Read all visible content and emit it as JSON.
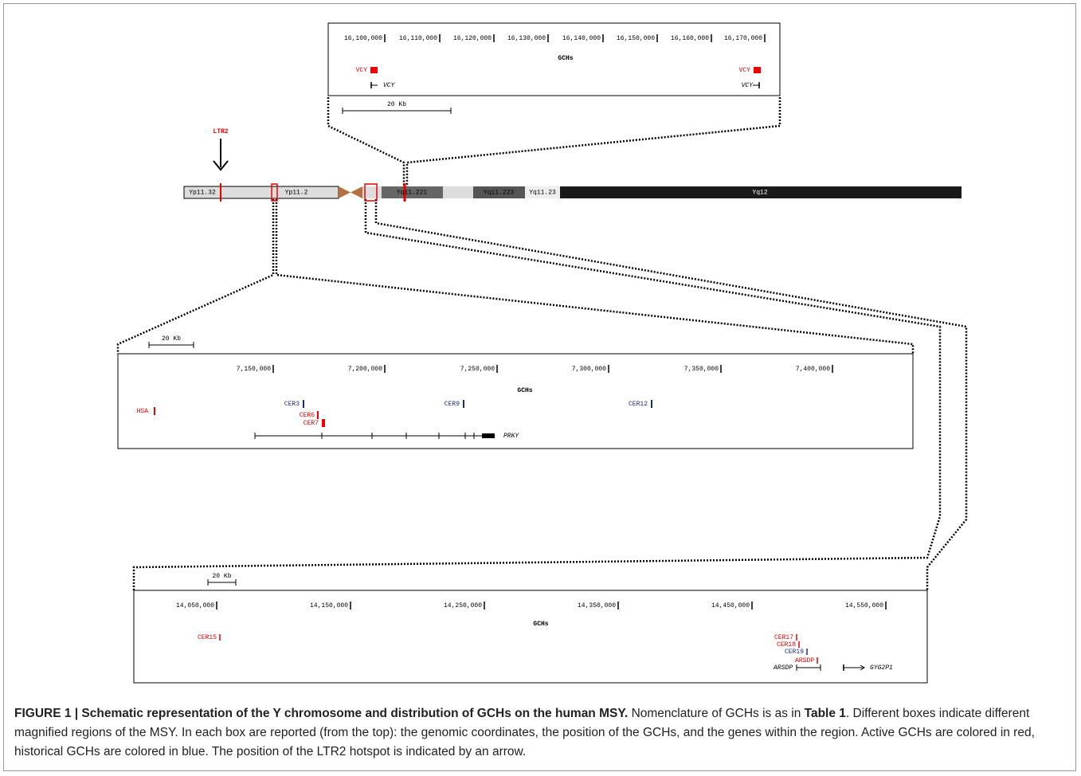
{
  "top_box": {
    "coordinates": [
      "16,100,000",
      "16,110,000",
      "16,120,000",
      "16,130,000",
      "16,140,000",
      "16,150,000",
      "16,160,000",
      "16,170,000"
    ],
    "title": "GCHs",
    "gchs": [
      "VCY",
      "VCY"
    ],
    "genes": [
      "VCY",
      "VCY"
    ],
    "scale": "20 Kb"
  },
  "ideogram": {
    "hotspot": "LTR2",
    "bands": [
      "Yp11.32",
      "Yp11.2",
      "Yq11.221",
      "Yq11.223",
      "Yq11.23",
      "Yq12"
    ]
  },
  "middle_box": {
    "scale": "20 Kb",
    "coordinates": [
      "7,150,000",
      "7,200,000",
      "7,250,000",
      "7,300,000",
      "7,350,000",
      "7,400,000"
    ],
    "title": "GCHs",
    "gchs": [
      "HSA",
      "CER3",
      "CER6",
      "CER7",
      "CER9",
      "CER12"
    ],
    "genes": [
      "PRKY"
    ]
  },
  "bottom_box": {
    "scale": "20 Kb",
    "coordinates": [
      "14,050,000",
      "14,150,000",
      "14,250,000",
      "14,350,000",
      "14,450,000",
      "14,550,000"
    ],
    "title": "GCHs",
    "gchs": [
      "CER15",
      "CER17",
      "CER18",
      "CER19",
      "ARSDP"
    ],
    "genes": [
      "ARSDP",
      "GYG2P1"
    ]
  },
  "caption": {
    "heading": "FIGURE 1 | Schematic representation of the Y chromosome and distribution of GCHs on the human MSY.",
    "text_1": " Nomenclature of GCHs is as in ",
    "table_ref": "Table 1",
    "text_2": ". Different boxes indicate different magnified regions of the MSY. In each box are reported (from the top): the genomic coordinates, the position of the GCHs, and the genes within the region. Active GCHs are colored in red, historical GCHs are colored in blue. The position of the LTR2 hotspot is indicated by an arrow."
  }
}
